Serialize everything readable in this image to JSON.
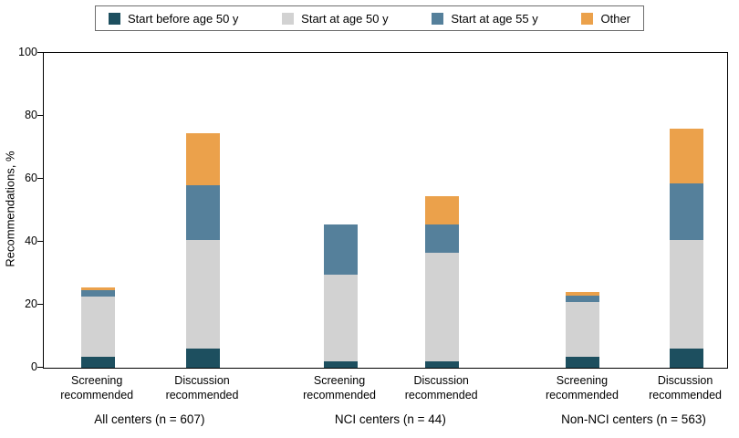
{
  "chart_data": {
    "type": "bar",
    "stacked": true,
    "title": "",
    "ylabel": "Recommendations, %",
    "ylim": [
      0,
      100
    ],
    "yticks": [
      0,
      20,
      40,
      60,
      80,
      100
    ],
    "grid": false,
    "legend_position": "top",
    "legend": [
      {
        "label": "Start before age 50 y",
        "color": "#1d4f5f"
      },
      {
        "label": "Start at age 50 y",
        "color": "#d2d2d2"
      },
      {
        "label": "Start at age 55 y",
        "color": "#55809b"
      },
      {
        "label": "Other",
        "color": "#eba14b"
      }
    ],
    "groups": [
      {
        "label": "All centers (n = 607)",
        "bars": [
          {
            "label_lines": [
              "Screening",
              "recommended"
            ],
            "values": [
              3.5,
              19,
              2,
              1
            ]
          },
          {
            "label_lines": [
              "Discussion",
              "recommended"
            ],
            "values": [
              6,
              34.5,
              17.5,
              16.5
            ]
          }
        ]
      },
      {
        "label": "NCI centers (n = 44)",
        "bars": [
          {
            "label_lines": [
              "Screening",
              "recommended"
            ],
            "values": [
              2,
              27.5,
              16,
              0
            ]
          },
          {
            "label_lines": [
              "Discussion",
              "recommended"
            ],
            "values": [
              2,
              34.5,
              9,
              9
            ]
          }
        ]
      },
      {
        "label": "Non-NCI centers (n = 563)",
        "bars": [
          {
            "label_lines": [
              "Screening",
              "recommended"
            ],
            "values": [
              3.5,
              17.5,
              2,
              1
            ]
          },
          {
            "label_lines": [
              "Discussion",
              "recommended"
            ],
            "values": [
              6,
              34.5,
              18,
              17.5
            ]
          }
        ]
      }
    ]
  }
}
